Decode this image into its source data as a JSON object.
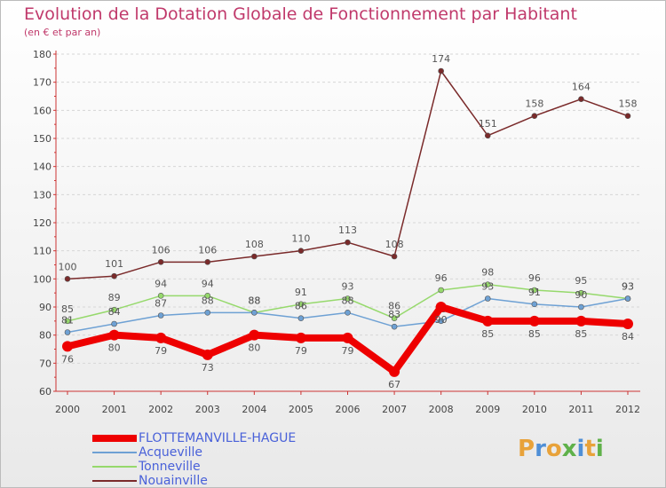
{
  "title": "Evolution de la Dotation Globale de Fonctionnement par Habitant",
  "subtitle": "(en € et par an)",
  "logo": {
    "text": "Proxiti",
    "colors": [
      "#e8a23a",
      "#4f8fd6",
      "#e8a23a",
      "#5fb14a",
      "#4f8fd6",
      "#e8a23a",
      "#5fb14a"
    ]
  },
  "chart_data": {
    "type": "line",
    "title": "Evolution de la Dotation Globale de Fonctionnement par Habitant",
    "subtitle": "(en € et par an)",
    "xlabel": "",
    "ylabel": "",
    "x": [
      "2000",
      "2001",
      "2002",
      "2003",
      "2004",
      "2005",
      "2006",
      "2007",
      "2008",
      "2009",
      "2010",
      "2011",
      "2012"
    ],
    "ylim": [
      60,
      180
    ],
    "yticks": [
      60,
      70,
      80,
      90,
      100,
      110,
      120,
      130,
      140,
      150,
      160,
      170,
      180
    ],
    "series": [
      {
        "name": "FLOTTEMANVILLE-HAGUE",
        "color": "#ee0000",
        "values": [
          76,
          80,
          79,
          73,
          80,
          79,
          79,
          67,
          90,
          85,
          85,
          85,
          84
        ]
      },
      {
        "name": "Acqueville",
        "color": "#6ea1d4",
        "values": [
          81,
          84,
          87,
          88,
          88,
          86,
          88,
          83,
          85,
          93,
          91,
          90,
          93
        ]
      },
      {
        "name": "Tonneville",
        "color": "#96d96c",
        "values": [
          85,
          89,
          94,
          94,
          88,
          91,
          93,
          86,
          96,
          98,
          96,
          95,
          93
        ]
      },
      {
        "name": "Nouainville",
        "color": "#7a2a2a",
        "values": [
          100,
          101,
          106,
          106,
          108,
          110,
          113,
          108,
          174,
          151,
          158,
          164,
          158
        ]
      }
    ]
  }
}
